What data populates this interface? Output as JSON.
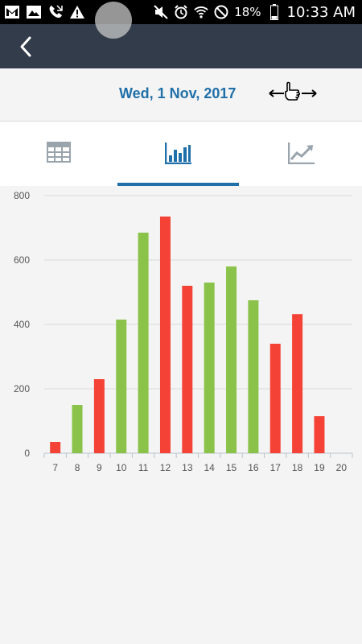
{
  "status_bar": {
    "battery": "18%",
    "time": "10:33 AM"
  },
  "header": {
    "title": ""
  },
  "date_bar": {
    "date": "Wed, 1 Nov, 2017",
    "swipe_icon": "swipe-hand-icon"
  },
  "tabs": [
    {
      "name": "table",
      "icon": "table-icon",
      "active": false
    },
    {
      "name": "bar-chart",
      "icon": "bar-chart-icon",
      "active": true
    },
    {
      "name": "line-chart",
      "icon": "line-chart-icon",
      "active": false
    }
  ],
  "colors": {
    "accent": "#1f6fa8",
    "appbar": "#333c4a",
    "bar_green": "#8bc34a",
    "bar_red": "#f44336"
  },
  "chart_data": {
    "type": "bar",
    "categories": [
      "7",
      "8",
      "9",
      "10",
      "11",
      "12",
      "13",
      "14",
      "15",
      "16",
      "17",
      "18",
      "19",
      "20"
    ],
    "values": [
      35,
      150,
      230,
      415,
      685,
      735,
      520,
      530,
      580,
      475,
      340,
      432,
      115,
      0
    ],
    "colors": [
      "red",
      "green",
      "red",
      "green",
      "green",
      "red",
      "red",
      "green",
      "green",
      "green",
      "red",
      "red",
      "red",
      "none"
    ],
    "yticks": [
      0,
      200,
      400,
      600,
      800
    ],
    "ylim": [
      0,
      800
    ],
    "grid": true
  }
}
